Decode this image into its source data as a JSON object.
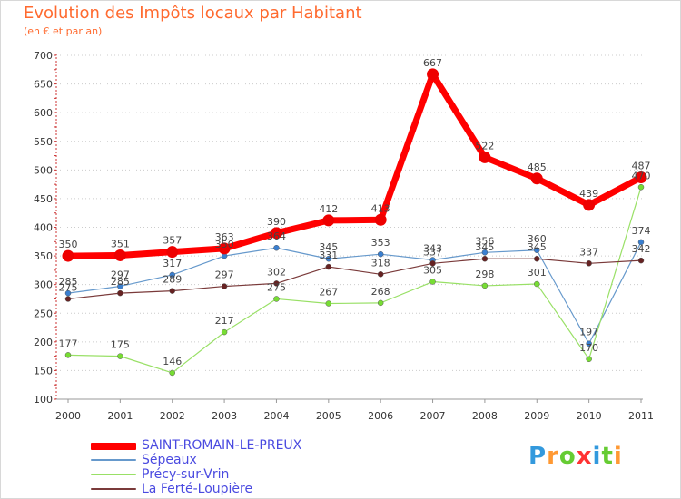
{
  "chart_data": {
    "type": "line",
    "title": "Evolution des Impôts locaux par Habitant",
    "subtitle": "(en € et par an)",
    "xlabel": "",
    "ylabel": "",
    "x": [
      "2000",
      "2001",
      "2002",
      "2003",
      "2004",
      "2005",
      "2006",
      "2007",
      "2008",
      "2009",
      "2010",
      "2011"
    ],
    "yticks": [
      100,
      150,
      200,
      250,
      300,
      350,
      400,
      450,
      500,
      550,
      600,
      650,
      700
    ],
    "ylim": [
      100,
      700
    ],
    "grid": "horizontal dotted",
    "legend_position": "bottom-left",
    "series": [
      {
        "name": "SAINT-ROMAIN-LE-PREUX",
        "color": "#ff0000",
        "marker": "#ee0000",
        "width": 7,
        "values": [
          350,
          351,
          357,
          363,
          390,
          412,
          413,
          667,
          522,
          485,
          439,
          487
        ],
        "labels": [
          "350",
          "351",
          "357",
          "363",
          "390",
          "412",
          "413",
          "667",
          "522",
          "485",
          "439",
          "487"
        ]
      },
      {
        "name": "Sépeaux",
        "color": "#6699cc",
        "marker": "#3a7fd0",
        "width": 1.2,
        "values": [
          285,
          297,
          317,
          350,
          364,
          345,
          353,
          343,
          356,
          360,
          197,
          374
        ],
        "labels": [
          "285",
          "297",
          "317",
          "350",
          "364",
          "345",
          "353",
          "343",
          "356",
          "360",
          "197",
          "374"
        ]
      },
      {
        "name": "Précy-sur-Vrin",
        "color": "#99e066",
        "marker": "#77dd33",
        "width": 1.2,
        "values": [
          177,
          175,
          146,
          217,
          275,
          267,
          268,
          305,
          298,
          301,
          170,
          470
        ],
        "labels": [
          "177",
          "175",
          "146",
          "217",
          "275",
          "267",
          "268",
          "305",
          "298",
          "301",
          "170",
          "470"
        ]
      },
      {
        "name": "La Ferté-Loupière",
        "color": "#7a3a3a",
        "marker": "#662222",
        "width": 1.2,
        "values": [
          275,
          285,
          289,
          297,
          302,
          331,
          318,
          337,
          345,
          345,
          337,
          342
        ],
        "labels": [
          "275",
          "285",
          "289",
          "297",
          "302",
          "331",
          "318",
          "337",
          "345",
          "345",
          "337",
          "342"
        ]
      }
    ]
  },
  "logo": {
    "text": "Proxiti",
    "letters": [
      "P",
      "r",
      "o",
      "x",
      "i",
      "t",
      "i"
    ],
    "colors": [
      "#3399dd",
      "#ff9933",
      "#66cc33",
      "#ff3333",
      "#3399dd",
      "#66cc33",
      "#ff9933"
    ]
  }
}
